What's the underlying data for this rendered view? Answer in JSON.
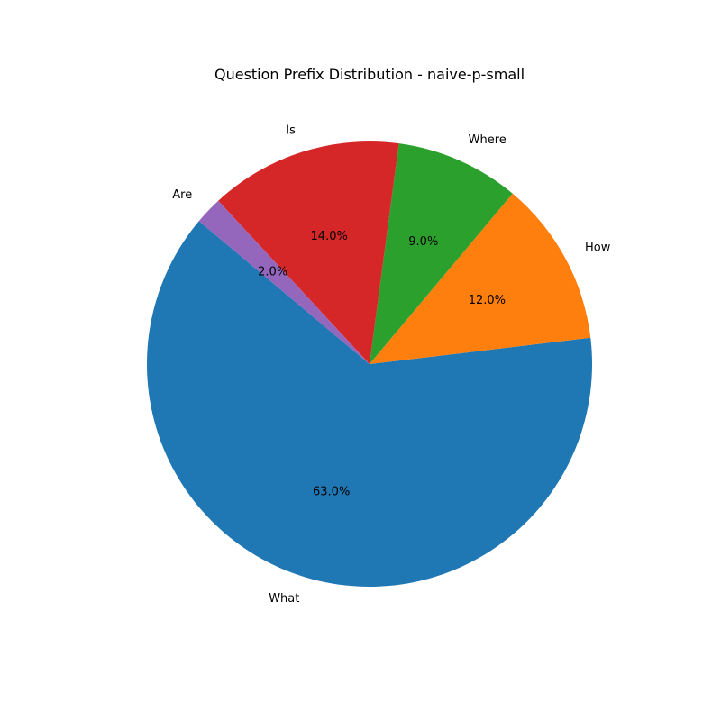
{
  "chart_data": {
    "type": "pie",
    "title": "Question Prefix Distribution - naive-p-small",
    "categories": [
      "What",
      "How",
      "Where",
      "Is",
      "Are"
    ],
    "values": [
      63.0,
      12.0,
      9.0,
      14.0,
      2.0
    ],
    "percent_labels": [
      "63.0%",
      "12.0%",
      "9.0%",
      "14.0%",
      "2.0%"
    ],
    "colors": [
      "#1f77b4",
      "#ff7f0e",
      "#2ca02c",
      "#d62728",
      "#9467bd"
    ],
    "start_angle_deg": 140,
    "direction": "counterclockwise",
    "legend": "none"
  }
}
